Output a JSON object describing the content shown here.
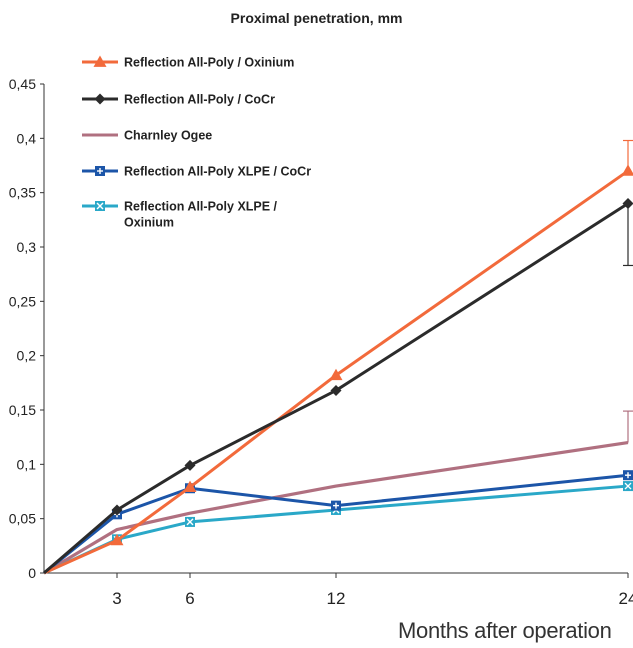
{
  "chart_data": {
    "type": "line",
    "title": "Proximal penetration, mm",
    "xlabel": "Months after operation",
    "ylabel": "",
    "x": [
      0,
      3,
      6,
      12,
      24
    ],
    "xticks": [
      "3",
      "6",
      "12",
      "24"
    ],
    "xlim": [
      0,
      24
    ],
    "ylim": [
      0,
      0.45
    ],
    "yticks": [
      "0",
      "0,05",
      "0,1",
      "0,15",
      "0,2",
      "0,25",
      "0,3",
      "0,35",
      "0,4",
      "0,45"
    ],
    "grid": false,
    "legend_position": "top-left",
    "series": [
      {
        "name": "Reflection All-Poly / Oxinium",
        "color": "#f26a3b",
        "marker": "triangle",
        "points": [
          [
            0,
            0
          ],
          [
            3,
            0.03
          ],
          [
            6,
            0.079
          ],
          [
            12,
            0.182
          ],
          [
            24,
            0.37
          ]
        ],
        "error_bar": {
          "x": 24,
          "high": 0.398
        }
      },
      {
        "name": "Reflection All-Poly / CoCr",
        "color": "#2b2b2b",
        "marker": "diamond",
        "points": [
          [
            0,
            0
          ],
          [
            3,
            0.058
          ],
          [
            6,
            0.099
          ],
          [
            12,
            0.168
          ],
          [
            24,
            0.34
          ]
        ],
        "error_bar": {
          "x": 24,
          "low": 0.283
        }
      },
      {
        "name": "Charnley Ogee",
        "color": "#b07080",
        "marker": "none",
        "points": [
          [
            0,
            0
          ],
          [
            3,
            0.04
          ],
          [
            6,
            0.055
          ],
          [
            12,
            0.08
          ],
          [
            24,
            0.12
          ]
        ],
        "error_bar": {
          "x": 24,
          "high": 0.149
        }
      },
      {
        "name": "Reflection All-Poly XLPE / CoCr",
        "color": "#1c55a8",
        "marker": "square-plus",
        "points": [
          [
            0,
            0
          ],
          [
            3,
            0.054
          ],
          [
            6,
            0.078
          ],
          [
            12,
            0.062
          ],
          [
            24,
            0.09
          ]
        ]
      },
      {
        "name": "Reflection All-Poly XLPE / Oxinium",
        "name_lines": [
          "Reflection All-Poly XLPE /",
          "Oxinium"
        ],
        "color": "#2aa8c8",
        "marker": "square-x",
        "points": [
          [
            0,
            0
          ],
          [
            3,
            0.031
          ],
          [
            6,
            0.047
          ],
          [
            12,
            0.058
          ],
          [
            24,
            0.08
          ]
        ]
      }
    ]
  }
}
